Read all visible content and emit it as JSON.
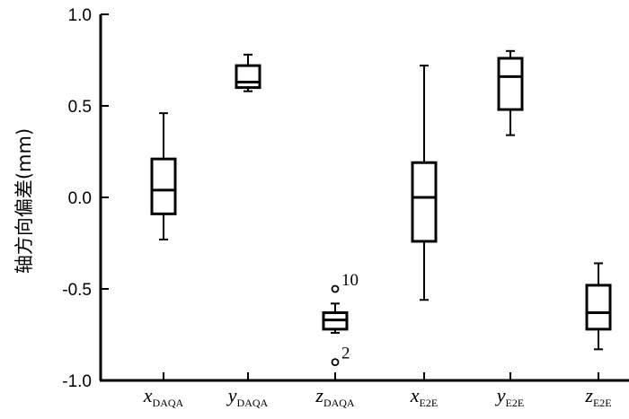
{
  "chart_data": {
    "type": "box",
    "title": "",
    "xlabel": "",
    "ylabel": "轴方向偏差(mm)",
    "ylim": [
      -1.0,
      1.0
    ],
    "yticks": [
      1.0,
      0.5,
      0.0,
      -0.5,
      -1.0
    ],
    "ytick_labels": [
      "1.0",
      "0.5",
      "0.0",
      "-0.5",
      "-1.0"
    ],
    "grid": false,
    "categories": [
      {
        "main": "x",
        "sub": "DAQA"
      },
      {
        "main": "y",
        "sub": "DAQA"
      },
      {
        "main": "z",
        "sub": "DAQA"
      },
      {
        "main": "x",
        "sub": "E2E"
      },
      {
        "main": "y",
        "sub": "E2E"
      },
      {
        "main": "z",
        "sub": "E2E"
      }
    ],
    "boxes": [
      {
        "whisker_low": -0.23,
        "q1": -0.09,
        "median": 0.04,
        "q3": 0.21,
        "whisker_high": 0.46,
        "outliers": []
      },
      {
        "whisker_low": 0.58,
        "q1": 0.6,
        "median": 0.63,
        "q3": 0.72,
        "whisker_high": 0.78,
        "outliers": []
      },
      {
        "whisker_low": -0.74,
        "q1": -0.72,
        "median": -0.67,
        "q3": -0.63,
        "whisker_high": -0.58,
        "outliers": [
          {
            "value": -0.5,
            "label": "10"
          },
          {
            "value": -0.9,
            "label": "2"
          }
        ]
      },
      {
        "whisker_low": -0.56,
        "q1": -0.24,
        "median": 0.0,
        "q3": 0.19,
        "whisker_high": 0.72,
        "outliers": []
      },
      {
        "whisker_low": 0.34,
        "q1": 0.48,
        "median": 0.66,
        "q3": 0.76,
        "whisker_high": 0.8,
        "outliers": []
      },
      {
        "whisker_low": -0.83,
        "q1": -0.72,
        "median": -0.63,
        "q3": -0.48,
        "whisker_high": -0.36,
        "outliers": []
      }
    ]
  }
}
